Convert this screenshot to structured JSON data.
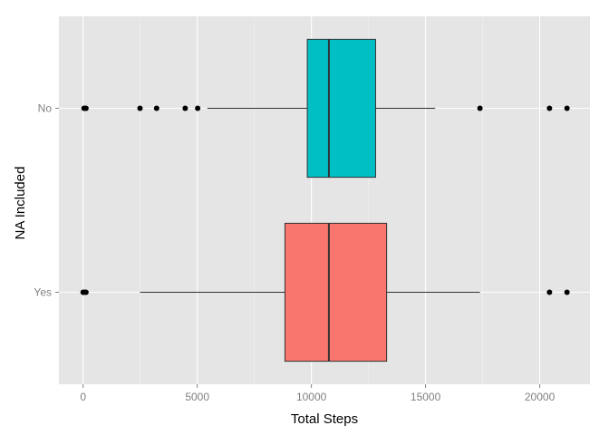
{
  "chart_data": {
    "type": "boxplot",
    "orientation": "horizontal",
    "title": "",
    "xlabel": "Total Steps",
    "ylabel": "NA Included",
    "xlim": [
      -1060,
      22200
    ],
    "xticks": [
      0,
      5000,
      10000,
      15000,
      20000
    ],
    "xtick_labels": [
      "0",
      "5000",
      "10000",
      "15000",
      "20000"
    ],
    "categories": [
      "Yes",
      "No"
    ],
    "grid": true,
    "legend": "none",
    "background": "#e5e5e5",
    "series": [
      {
        "category": "No",
        "color": "#00bfc4",
        "whisker_low": 5441,
        "q1": 9819,
        "median": 10765,
        "q3": 12811,
        "whisker_high": 15420,
        "outliers": [
          41,
          126,
          2492,
          3219,
          4472,
          5018,
          17382,
          20427,
          21194
        ]
      },
      {
        "category": "Yes",
        "color": "#f8766d",
        "whisker_low": 2492,
        "q1": 8841,
        "median": 10765,
        "q3": 13294,
        "whisker_high": 17382,
        "outliers": [
          0,
          41,
          126,
          20427,
          21194
        ]
      }
    ]
  }
}
